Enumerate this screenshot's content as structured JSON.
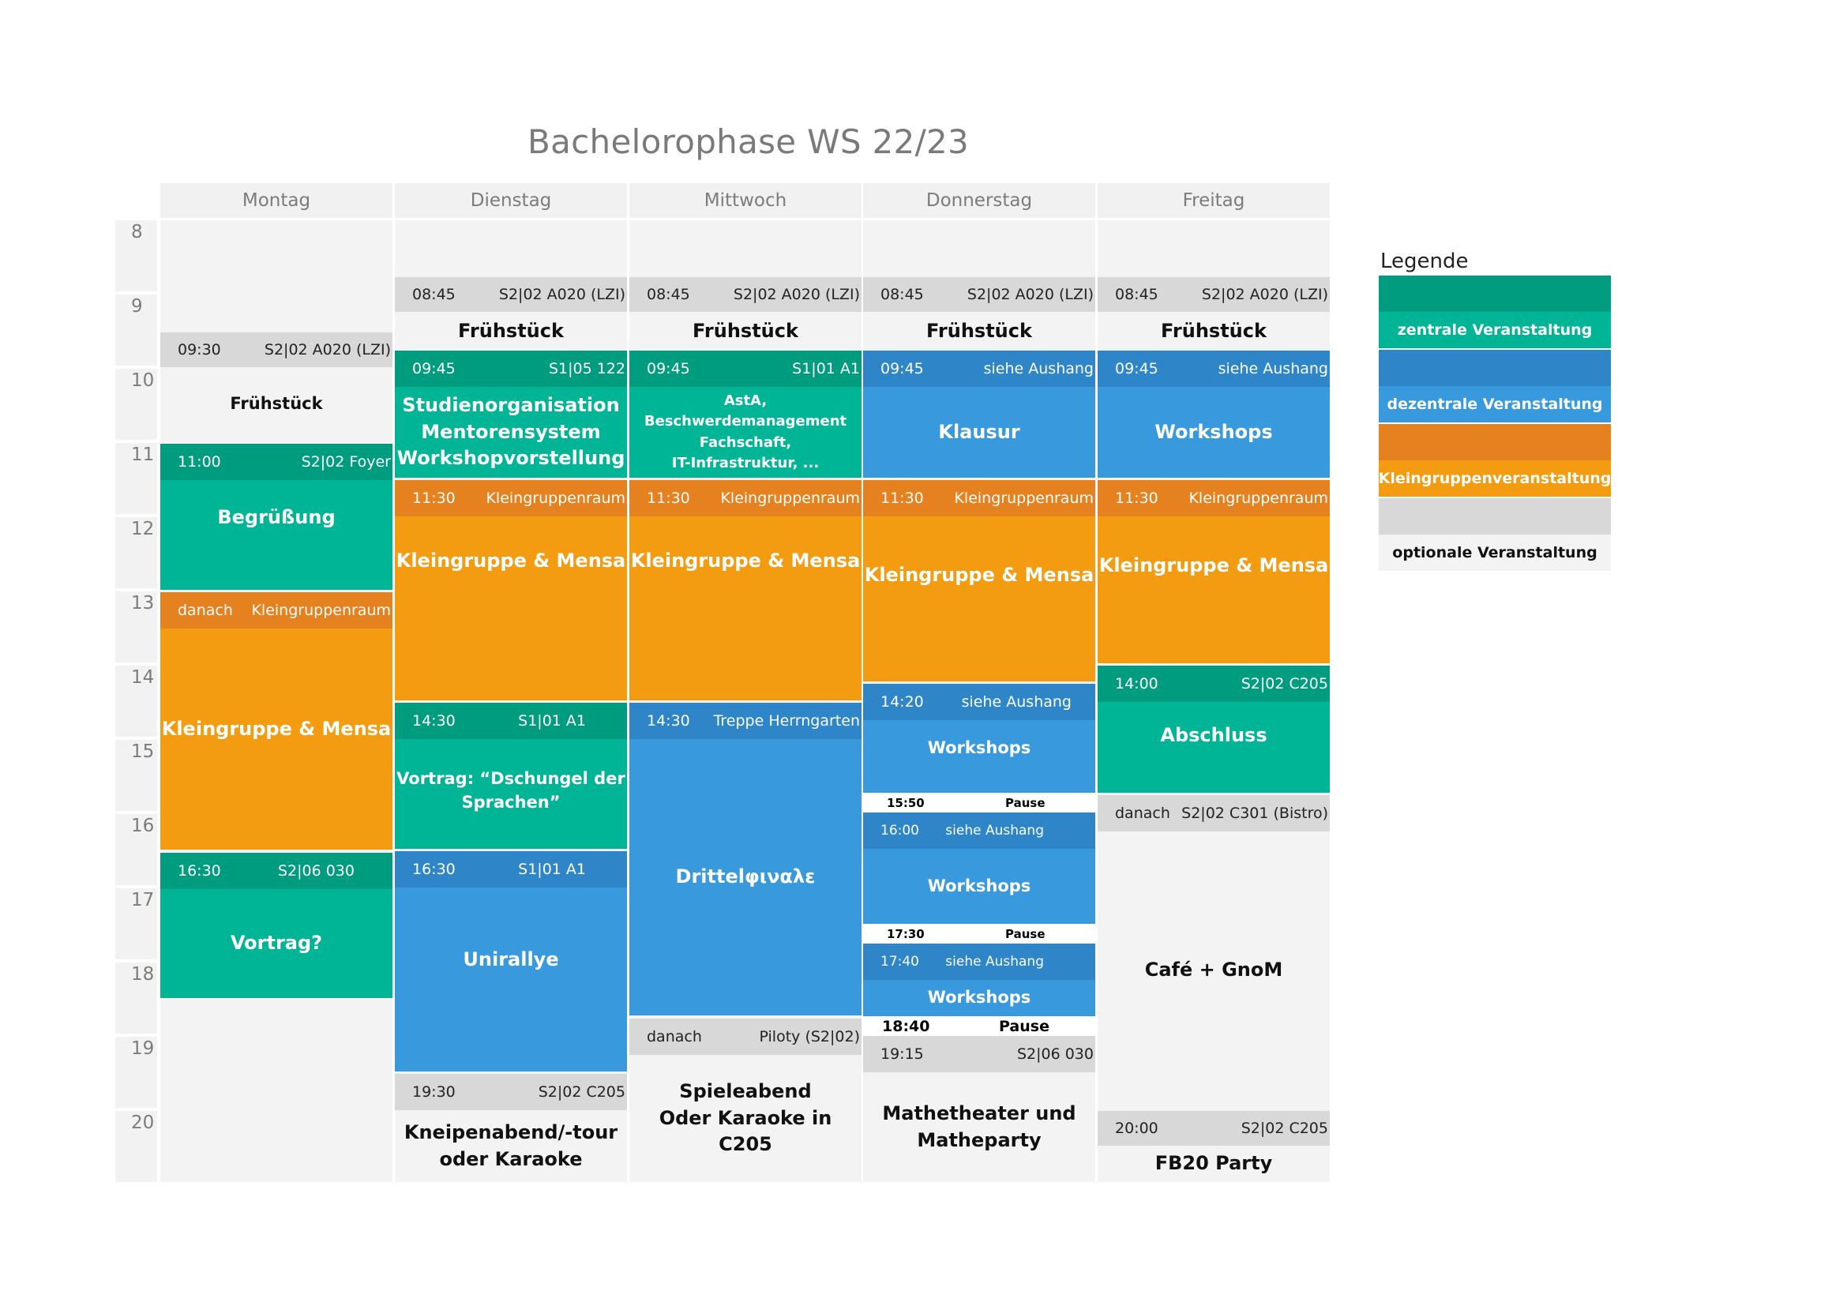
{
  "title": "Bachelorophase WS 22/23",
  "days": [
    "Montag",
    "Dienstag",
    "Mittwoch",
    "Donnerstag",
    "Freitag"
  ],
  "hours": [
    "8",
    "9",
    "10",
    "11",
    "12",
    "13",
    "14",
    "15",
    "16",
    "17",
    "18",
    "19",
    "20"
  ],
  "colors": {
    "zentral_header": "#009c7f",
    "zentral": "#00b596",
    "dezentral_header": "#2e86c9",
    "dezentral": "#3899dd",
    "klein_header": "#e5821f",
    "klein": "#f39c12",
    "optional_header": "#d8d8d8",
    "optional": "#f3f3f3"
  },
  "legend": {
    "title": "Legende",
    "items": [
      {
        "label": "zentrale Veranstaltung"
      },
      {
        "label": "dezentrale Veranstaltung"
      },
      {
        "label": "Kleingruppenveranstaltung"
      },
      {
        "label": "optionale Veranstaltung"
      }
    ]
  },
  "events": {
    "mo": [
      {
        "time": "09:30",
        "room": "S2|02 A020 (LZI)",
        "title": "Frühstück"
      },
      {
        "time": "11:00",
        "room": "S2|02 Foyer",
        "title": "Begrüßung"
      },
      {
        "time": "danach",
        "room": "Kleingruppenraum",
        "title": "Kleingruppe & Mensa"
      },
      {
        "time": "16:30",
        "room": "S2|06 030",
        "title": "Vortrag?"
      }
    ],
    "di": [
      {
        "time": "08:45",
        "room": "S2|02 A020 (LZI)",
        "title": "Frühstück"
      },
      {
        "time": "09:45",
        "room": "S1|05 122",
        "title": [
          "Studienorganisation",
          "Mentorensystem",
          "Workshopvorstellung"
        ]
      },
      {
        "time": "11:30",
        "room": "Kleingruppenraum",
        "title": "Kleingruppe & Mensa"
      },
      {
        "time": "14:30",
        "room": "S1|01 A1",
        "title": [
          "Vortrag: “Dschungel der",
          "Sprachen”"
        ]
      },
      {
        "time": "16:30",
        "room": "S1|01 A1",
        "title": "Unirallye"
      },
      {
        "time": "19:30",
        "room": "S2|02 C205",
        "title": [
          "Kneipenabend/-tour",
          "oder Karaoke"
        ]
      }
    ],
    "mi": [
      {
        "time": "08:45",
        "room": "S2|02 A020 (LZI)",
        "title": "Frühstück"
      },
      {
        "time": "09:45",
        "room": "S1|01 A1",
        "title": [
          "AstA,",
          "Beschwerdemanagement",
          "Fachschaft,",
          "IT-Infrastruktur, ..."
        ]
      },
      {
        "time": "11:30",
        "room": "Kleingruppenraum",
        "title": "Kleingruppe & Mensa"
      },
      {
        "time": "14:30",
        "room": "Treppe Herrngarten",
        "title": "Drittelφιναλε"
      },
      {
        "time": "danach",
        "room": "Piloty (S2|02)",
        "title": [
          "Spieleabend",
          "Oder Karaoke in C205"
        ]
      }
    ],
    "do": [
      {
        "time": "08:45",
        "room": "S2|02 A020 (LZI)",
        "title": "Frühstück"
      },
      {
        "time": "09:45",
        "room": "siehe Aushang",
        "title": "Klausur"
      },
      {
        "time": "11:30",
        "room": "Kleingruppenraum",
        "title": "Kleingruppe & Mensa"
      },
      {
        "time": "14:20",
        "room": "siehe Aushang",
        "title": "Workshops"
      },
      {
        "time": "15:50",
        "room": "Pause"
      },
      {
        "time": "16:00",
        "room": "siehe Aushang",
        "title": "Workshops"
      },
      {
        "time": "17:30",
        "room": "Pause"
      },
      {
        "time": "17:40",
        "room": "siehe Aushang",
        "title": "Workshops"
      },
      {
        "time": "18:40",
        "room": "Pause"
      },
      {
        "time": "19:15",
        "room": "S2|06 030",
        "title": [
          "Mathetheater und",
          "Matheparty"
        ]
      }
    ],
    "fr": [
      {
        "time": "08:45",
        "room": "S2|02 A020 (LZI)",
        "title": "Frühstück"
      },
      {
        "time": "09:45",
        "room": "siehe Aushang",
        "title": "Workshops"
      },
      {
        "time": "11:30",
        "room": "Kleingruppenraum",
        "title": "Kleingruppe & Mensa"
      },
      {
        "time": "14:00",
        "room": "S2|02 C205",
        "title": "Abschluss"
      },
      {
        "time": "danach",
        "room": "S2|02 C301 (Bistro)",
        "title": "Café + GnoM"
      },
      {
        "time": "20:00",
        "room": "S2|02 C205",
        "title": "FB20 Party"
      }
    ]
  }
}
